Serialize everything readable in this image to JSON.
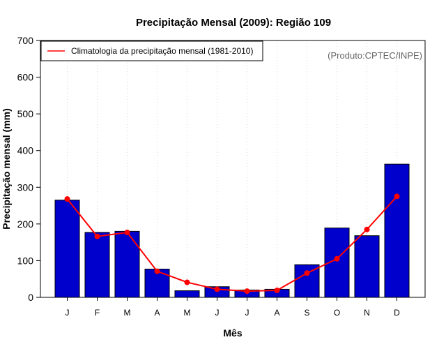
{
  "chart_data": {
    "type": "bar",
    "title": "Precipitação Mensal (2009): Região 109",
    "xlabel": "Mês",
    "ylabel": "Precipitação mensal (mm)",
    "ylim": [
      0,
      700
    ],
    "yticks": [
      0,
      100,
      200,
      300,
      400,
      500,
      600,
      700
    ],
    "categories": [
      "J",
      "F",
      "M",
      "A",
      "M",
      "J",
      "J",
      "A",
      "S",
      "O",
      "N",
      "D"
    ],
    "grid": "vertical dotted",
    "series": [
      {
        "name": "Precipitação mensal (2009)",
        "type": "bar",
        "color": "#0000cc",
        "values": [
          265,
          177,
          180,
          77,
          18,
          29,
          20,
          22,
          89,
          189,
          168,
          363
        ]
      },
      {
        "name": "Climatologia da precipitação mensal (1981-2010)",
        "type": "line",
        "color": "#ff0000",
        "values": [
          268,
          166,
          177,
          71,
          41,
          22,
          17,
          19,
          66,
          105,
          185,
          275
        ]
      }
    ],
    "legend": {
      "position": "top-left",
      "label": "Climatologia da precipitação mensal (1981-2010)"
    },
    "annotation": "(Produto:CPTEC/INPE)"
  }
}
